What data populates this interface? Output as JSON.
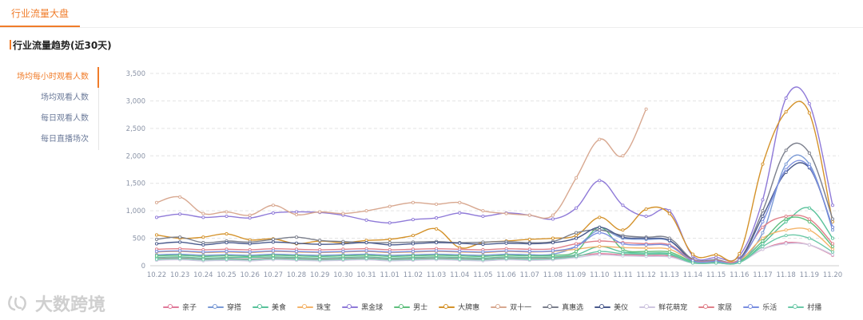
{
  "header": {
    "tab_label": "行业流量大盘"
  },
  "section": {
    "title": "行业流量趋势(近30天)"
  },
  "side_menu": {
    "items": [
      {
        "label": "场均每小时观看人数",
        "active": true
      },
      {
        "label": "场均观看人数",
        "active": false
      },
      {
        "label": "每日观看人数",
        "active": false
      },
      {
        "label": "每日直播场次",
        "active": false
      }
    ]
  },
  "watermark": {
    "text": "大数跨境"
  },
  "chart_data": {
    "type": "line",
    "title": "",
    "xlabel": "",
    "ylabel": "",
    "ylim": [
      0,
      3500
    ],
    "yticks": [
      0,
      500,
      1000,
      1500,
      2000,
      2500,
      3000,
      3500
    ],
    "ytick_labels": [
      "0",
      "500",
      "1,000",
      "1,500",
      "2,000",
      "2,500",
      "3,000",
      "3,500"
    ],
    "grid": "horizontal-dashed",
    "legend_position": "bottom",
    "categories": [
      "10.22",
      "10.23",
      "10.24",
      "10.25",
      "10.26",
      "10.27",
      "10.28",
      "10.29",
      "10.30",
      "10.31",
      "11.01",
      "11.02",
      "11.03",
      "11.04",
      "11.05",
      "11.06",
      "11.07",
      "11.08",
      "11.09",
      "11.10",
      "11.11",
      "11.12",
      "11.13",
      "11.14",
      "11.15",
      "11.16",
      "11.17",
      "11.18",
      "11.19",
      "11.20"
    ],
    "series": [
      {
        "name": "亲子",
        "color": "#e07a9a",
        "values": [
          130,
          140,
          120,
          130,
          120,
          140,
          130,
          120,
          130,
          140,
          120,
          130,
          140,
          130,
          120,
          140,
          130,
          140,
          180,
          220,
          200,
          190,
          180,
          60,
          60,
          70,
          300,
          420,
          380,
          190
        ]
      },
      {
        "name": "穿搭",
        "color": "#7a9ad6",
        "values": [
          200,
          210,
          190,
          200,
          190,
          210,
          200,
          190,
          200,
          210,
          190,
          200,
          210,
          200,
          190,
          210,
          200,
          210,
          350,
          650,
          500,
          480,
          450,
          100,
          90,
          110,
          600,
          1850,
          1850,
          650
        ]
      },
      {
        "name": "美食",
        "color": "#58c29a",
        "values": [
          150,
          160,
          140,
          150,
          150,
          160,
          150,
          140,
          150,
          160,
          140,
          150,
          160,
          150,
          140,
          160,
          150,
          160,
          200,
          350,
          250,
          230,
          220,
          60,
          50,
          60,
          400,
          800,
          1050,
          500
        ]
      },
      {
        "name": "珠宝",
        "color": "#f4b46a",
        "values": [
          250,
          260,
          240,
          250,
          240,
          260,
          250,
          240,
          250,
          260,
          240,
          250,
          260,
          250,
          240,
          260,
          250,
          260,
          300,
          350,
          330,
          320,
          300,
          100,
          90,
          100,
          500,
          650,
          650,
          300
        ]
      },
      {
        "name": "黑金球",
        "color": "#8f7ad8",
        "values": [
          880,
          940,
          880,
          900,
          870,
          960,
          980,
          970,
          920,
          830,
          780,
          840,
          870,
          960,
          900,
          960,
          920,
          850,
          1050,
          1550,
          1100,
          900,
          1000,
          180,
          150,
          180,
          1200,
          3050,
          2950,
          1100
        ]
      },
      {
        "name": "男士",
        "color": "#5fbf7d",
        "values": [
          180,
          190,
          170,
          180,
          170,
          190,
          180,
          170,
          180,
          190,
          170,
          180,
          190,
          180,
          170,
          190,
          180,
          190,
          260,
          700,
          300,
          260,
          250,
          80,
          70,
          80,
          450,
          850,
          800,
          350
        ]
      },
      {
        "name": "大牌惠",
        "color": "#d4922a",
        "values": [
          560,
          500,
          520,
          580,
          470,
          490,
          400,
          450,
          420,
          460,
          480,
          550,
          670,
          330,
          420,
          450,
          480,
          500,
          550,
          880,
          650,
          1030,
          950,
          210,
          200,
          220,
          1850,
          2800,
          2780,
          800
        ]
      },
      {
        "name": "双十一",
        "color": "#d8a890",
        "values": [
          1150,
          1250,
          950,
          980,
          920,
          1100,
          930,
          980,
          950,
          1000,
          1080,
          1150,
          1120,
          1150,
          1000,
          950,
          920,
          920,
          1600,
          2300,
          2000,
          2850,
          null,
          null,
          null,
          null,
          null,
          null,
          null,
          null
        ]
      },
      {
        "name": "真惠选",
        "color": "#7b7f8c",
        "values": [
          480,
          520,
          420,
          450,
          430,
          480,
          520,
          460,
          440,
          420,
          420,
          430,
          440,
          420,
          430,
          440,
          420,
          440,
          600,
          650,
          550,
          520,
          500,
          120,
          110,
          120,
          1000,
          2100,
          2050,
          850
        ]
      },
      {
        "name": "美仪",
        "color": "#4a5a8c",
        "values": [
          400,
          430,
          380,
          420,
          400,
          430,
          410,
          390,
          400,
          420,
          380,
          400,
          420,
          410,
          390,
          410,
          400,
          420,
          500,
          700,
          520,
          500,
          460,
          100,
          90,
          110,
          900,
          1700,
          1780,
          700
        ]
      },
      {
        "name": "鲜花萌宠",
        "color": "#cfc6e0",
        "values": [
          100,
          110,
          90,
          100,
          90,
          110,
          100,
          90,
          100,
          110,
          90,
          100,
          110,
          100,
          90,
          110,
          100,
          110,
          150,
          200,
          180,
          170,
          160,
          50,
          50,
          60,
          300,
          400,
          380,
          200
        ]
      },
      {
        "name": "家居",
        "color": "#e0808a",
        "values": [
          300,
          310,
          290,
          300,
          290,
          310,
          300,
          290,
          300,
          310,
          290,
          300,
          310,
          300,
          290,
          310,
          300,
          310,
          400,
          450,
          420,
          400,
          380,
          100,
          90,
          110,
          700,
          900,
          850,
          400
        ]
      },
      {
        "name": "乐活",
        "color": "#7a8ee0",
        "values": [
          260,
          270,
          250,
          260,
          250,
          270,
          260,
          250,
          260,
          270,
          250,
          260,
          270,
          260,
          250,
          270,
          260,
          270,
          350,
          600,
          400,
          380,
          360,
          90,
          80,
          100,
          800,
          1750,
          1800,
          700
        ]
      },
      {
        "name": "村播",
        "color": "#6cc9a8",
        "values": [
          120,
          130,
          110,
          120,
          110,
          130,
          120,
          110,
          120,
          130,
          110,
          120,
          130,
          120,
          110,
          130,
          120,
          130,
          170,
          260,
          220,
          210,
          200,
          50,
          50,
          60,
          350,
          550,
          500,
          250
        ]
      }
    ]
  }
}
